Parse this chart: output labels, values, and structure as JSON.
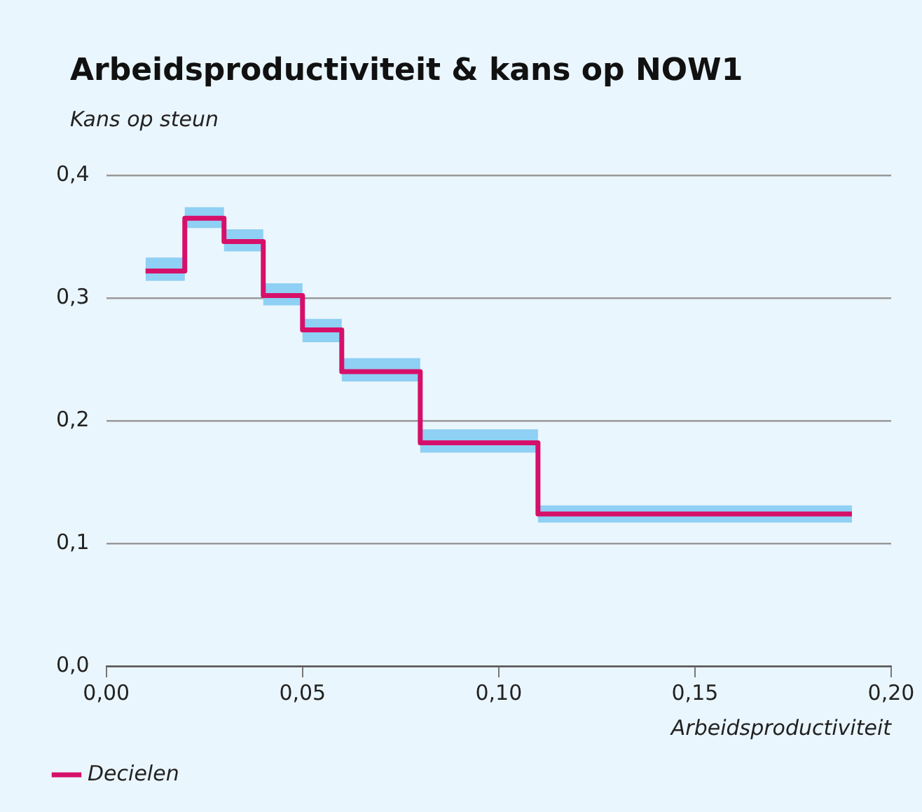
{
  "chart_data": {
    "type": "step",
    "title": "Arbeidsproductiviteit & kans op NOW1",
    "ylabel": "Kans op steun",
    "xlabel": "Arbeidsproductiviteit",
    "x": [
      0.01,
      0.02,
      0.03,
      0.04,
      0.05,
      0.06,
      0.08,
      0.11,
      0.19
    ],
    "series": [
      {
        "name": "Decielen",
        "color": "#d6106a",
        "values": [
          0.322,
          0.365,
          0.346,
          0.302,
          0.274,
          0.24,
          0.182,
          0.124,
          0.124
        ],
        "lower": [
          0.314,
          0.357,
          0.338,
          0.294,
          0.264,
          0.232,
          0.174,
          0.117,
          0.117
        ],
        "upper": [
          0.333,
          0.374,
          0.356,
          0.312,
          0.283,
          0.251,
          0.193,
          0.131,
          0.131
        ]
      }
    ],
    "xlim": [
      0,
      0.2
    ],
    "xticks": [
      {
        "value": 0,
        "label": "0,00"
      },
      {
        "value": 0.05,
        "label": "0,05"
      },
      {
        "value": 0.1,
        "label": "0,10"
      },
      {
        "value": 0.15,
        "label": "0,15"
      },
      {
        "value": 0.2,
        "label": "0,20"
      }
    ],
    "ylim": [
      0,
      0.4
    ],
    "yticks": [
      {
        "value": 0,
        "label": "0,0"
      },
      {
        "value": 0.1,
        "label": "0,1"
      },
      {
        "value": 0.2,
        "label": "0,2"
      },
      {
        "value": 0.3,
        "label": "0,3"
      },
      {
        "value": 0.4,
        "label": "0,4"
      }
    ],
    "grid": "y",
    "legend": "bottom left",
    "line_style": "solid",
    "marker": "none"
  }
}
